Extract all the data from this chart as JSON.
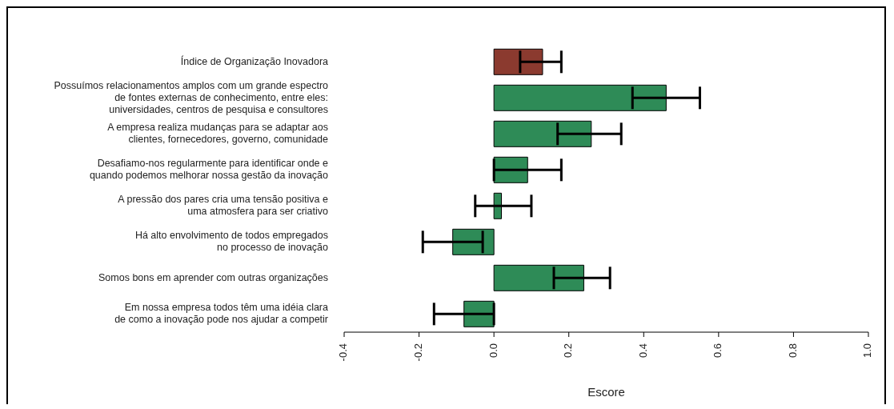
{
  "chart_data": {
    "type": "bar",
    "orientation": "horizontal",
    "xlabel": "Escore",
    "categories": [
      "Índice de Organização Inovadora",
      "Possuímos relacionamentos amplos com um grande espectro\nde fontes externas de conhecimento, entre eles:\nuniversidades, centros de pesquisa e consultores",
      "A empresa realiza mudanças para se adaptar aos\nclientes, fornecedores, governo, comunidade",
      "Desafiamo-nos regularmente para identificar onde e\nquando podemos melhorar nossa gestão da inovação",
      "A pressão dos pares cria uma tensão positiva e\numa atmosfera para ser criativo",
      "Há alto envolvimento de todos empregados\nno processo de inovação",
      "Somos bons em aprender com outras organizações",
      "Em nossa empresa todos têm uma idéia clara\nde como a inovação pode nos ajudar a competir"
    ],
    "values": [
      0.13,
      0.46,
      0.26,
      0.09,
      0.02,
      -0.11,
      0.24,
      -0.08
    ],
    "errors": [
      [
        0.07,
        0.18
      ],
      [
        0.37,
        0.55
      ],
      [
        0.17,
        0.34
      ],
      [
        0.0,
        0.18
      ],
      [
        -0.05,
        0.1
      ],
      [
        -0.19,
        -0.03
      ],
      [
        0.16,
        0.31
      ],
      [
        -0.16,
        0.0
      ]
    ],
    "colors": [
      "#8b3a2f",
      "#2e8b57",
      "#2e8b57",
      "#2e8b57",
      "#2e8b57",
      "#2e8b57",
      "#2e8b57",
      "#2e8b57"
    ],
    "xlim": [
      -0.4,
      1.0
    ],
    "xticks": [
      -0.4,
      -0.2,
      {
        "value": 0,
        "label": "0.0"
      },
      0.2,
      0.4,
      0.6,
      0.8,
      {
        "value": 1,
        "label": "1.0"
      }
    ],
    "grid": false,
    "legend": false
  }
}
